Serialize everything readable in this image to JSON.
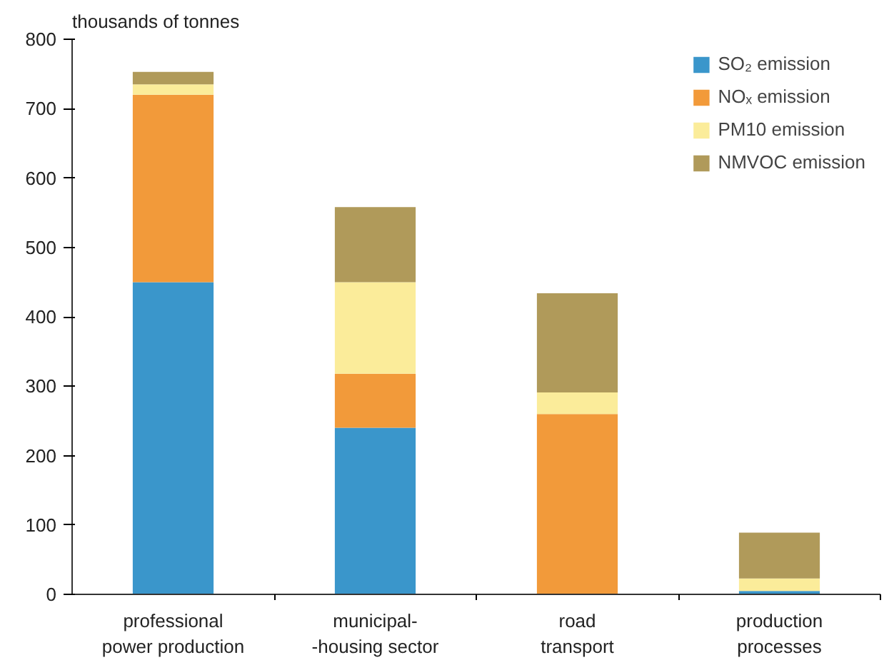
{
  "chart_data": {
    "type": "bar",
    "stacked": true,
    "ylabel": "thousands of tonnes",
    "categories": [
      "professional\npower production",
      "municipal-\n-housing sector",
      "road\ntransport",
      "production\nprocesses"
    ],
    "series": [
      {
        "name": "SO₂ emission",
        "color": "#3a96cb",
        "values": [
          450,
          240,
          0,
          5
        ]
      },
      {
        "name": "NOₓ emission",
        "color": "#f29a3a",
        "values": [
          270,
          78,
          260,
          0
        ]
      },
      {
        "name": "PM10 emission",
        "color": "#fbec9a",
        "values": [
          15,
          132,
          31,
          18
        ]
      },
      {
        "name": "NMVOC emission",
        "color": "#b09a5a",
        "values": [
          18,
          108,
          143,
          66
        ]
      }
    ],
    "ylim": [
      0,
      800
    ],
    "yticks": [
      0,
      100,
      200,
      300,
      400,
      500,
      600,
      700,
      800
    ],
    "grid": false,
    "legend": "top right"
  }
}
